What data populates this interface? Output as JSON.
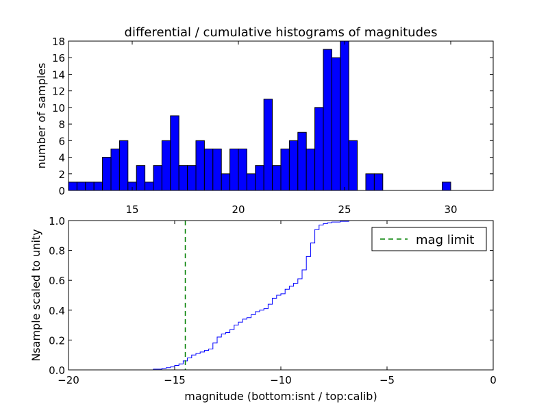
{
  "chart_data": [
    {
      "type": "bar",
      "title": "differential / cumulative histograms of magnitudes",
      "ylabel": "number of samples",
      "xlabel": "",
      "xlim": [
        12,
        32
      ],
      "ylim": [
        0,
        18
      ],
      "bin_start": 12.0,
      "bin_width": 0.4,
      "values": [
        1,
        1,
        1,
        1,
        4,
        5,
        6,
        1,
        3,
        1,
        3,
        6,
        9,
        3,
        3,
        6,
        5,
        5,
        2,
        5,
        5,
        2,
        3,
        11,
        3,
        5,
        6,
        7,
        5,
        10,
        17,
        16,
        18,
        6,
        0,
        2,
        2,
        0,
        0,
        0,
        0,
        0,
        0,
        0,
        1,
        0,
        0,
        0,
        0,
        0
      ],
      "xticks": [
        15,
        20,
        25,
        30
      ],
      "xtick_labels": [
        "15",
        "20",
        "25",
        "30"
      ],
      "yticks": [
        0,
        2,
        4,
        6,
        8,
        10,
        12,
        14,
        16,
        18
      ],
      "ytick_labels": [
        "0",
        "2",
        "4",
        "6",
        "8",
        "10",
        "12",
        "14",
        "16",
        "18"
      ],
      "bar_color": "#0000ff"
    },
    {
      "type": "line",
      "style": "step",
      "ylabel": "Nsample scaled to unity",
      "xlabel": "magnitude (bottom:isnt / top:calib)",
      "xlim": [
        -20,
        0
      ],
      "ylim": [
        0,
        1
      ],
      "series": [
        {
          "name": "cumulative",
          "color": "#0000ff",
          "x": [
            -20,
            -16.0,
            -15.6,
            -15.4,
            -15.2,
            -15.0,
            -14.8,
            -14.6,
            -14.4,
            -14.2,
            -14.0,
            -13.8,
            -13.6,
            -13.4,
            -13.2,
            -13.0,
            -12.8,
            -12.6,
            -12.4,
            -12.2,
            -12.0,
            -11.8,
            -11.6,
            -11.4,
            -11.2,
            -11.0,
            -10.8,
            -10.6,
            -10.4,
            -10.2,
            -10.0,
            -9.8,
            -9.6,
            -9.4,
            -9.2,
            -9.0,
            -8.8,
            -8.6,
            -8.4,
            -8.2,
            -8.0,
            -7.8,
            -7.6,
            -7.2,
            -6.8,
            -6.4,
            -0.05
          ],
          "y": [
            0.0,
            0.005,
            0.01,
            0.015,
            0.02,
            0.03,
            0.04,
            0.06,
            0.08,
            0.1,
            0.11,
            0.12,
            0.13,
            0.14,
            0.18,
            0.22,
            0.24,
            0.25,
            0.27,
            0.3,
            0.32,
            0.34,
            0.35,
            0.37,
            0.39,
            0.4,
            0.41,
            0.44,
            0.48,
            0.5,
            0.51,
            0.54,
            0.56,
            0.58,
            0.61,
            0.67,
            0.76,
            0.85,
            0.94,
            0.97,
            0.98,
            0.985,
            0.99,
            0.995,
            1.0,
            1.0,
            1.0
          ]
        }
      ],
      "vline": {
        "x": -14.5,
        "label": "mag limit",
        "color": "#008000"
      },
      "legend": {
        "position": "top-right",
        "entries": [
          "mag limit"
        ]
      },
      "xticks": [
        -20,
        -15,
        -10,
        -5,
        0
      ],
      "xtick_labels": [
        "−20",
        "−15",
        "−10",
        "−5",
        "0"
      ],
      "yticks": [
        0.0,
        0.2,
        0.4,
        0.6,
        0.8,
        1.0
      ],
      "ytick_labels": [
        "0.0",
        "0.2",
        "0.4",
        "0.6",
        "0.8",
        "1.0"
      ]
    }
  ]
}
